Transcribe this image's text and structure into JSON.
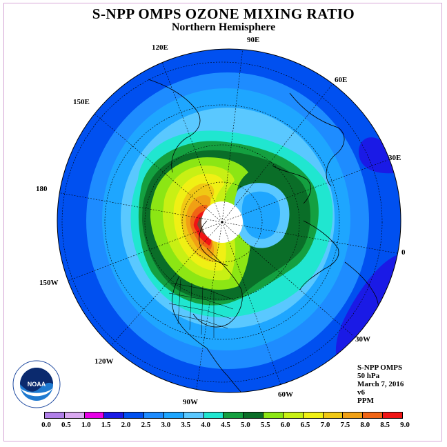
{
  "header": {
    "title": "S-NPP OMPS OZONE MIXING RATIO",
    "subtitle": "Northern Hemisphere"
  },
  "longitude_labels": [
    "90E",
    "60E",
    "30E",
    "0",
    "30W",
    "60W",
    "90W",
    "120W",
    "150W",
    "180",
    "150E",
    "120E"
  ],
  "info": {
    "instrument": "S-NPP OMPS",
    "level": "50 hPa",
    "date": "March 7, 2016",
    "version": "v6",
    "units": "PPM"
  },
  "colorbar": {
    "tick_labels": [
      "0.0",
      "0.5",
      "1.0",
      "1.5",
      "2.0",
      "2.5",
      "3.0",
      "3.5",
      "4.0",
      "4.5",
      "5.0",
      "5.5",
      "6.0",
      "6.5",
      "7.0",
      "7.5",
      "8.0",
      "8.5",
      "9.0"
    ],
    "colors": [
      "#b07fe8",
      "#d9a8f0",
      "#e600e6",
      "#1a1ae6",
      "#0050f0",
      "#1e8cff",
      "#1ea6ff",
      "#5ac8ff",
      "#20e6d0",
      "#14a040",
      "#0a6e28",
      "#8ce614",
      "#c8f014",
      "#f0f014",
      "#f0c814",
      "#f0a014",
      "#f06414",
      "#f01414",
      "#7a4a36"
    ]
  },
  "logo": {
    "text": "NOAA",
    "ring_text": "NATIONAL OCEANIC AND ATMOSPHERIC ADMINISTRATION · U.S. DEPARTMENT OF COMMERCE"
  },
  "map": {
    "projection": "north polar stereographic",
    "center": "North Pole"
  }
}
